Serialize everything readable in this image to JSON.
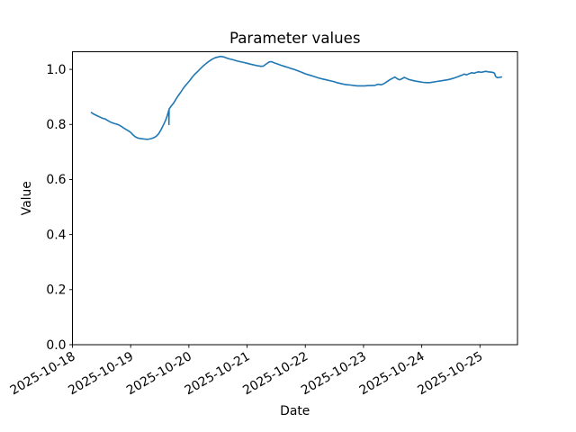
{
  "chart_data": {
    "type": "line",
    "title": "Parameter values",
    "xlabel": "Date",
    "ylabel": "Value",
    "x_tick_labels": [
      "2025-10-18",
      "2025-10-19",
      "2025-10-20",
      "2025-10-21",
      "2025-10-22",
      "2025-10-23",
      "2025-10-24",
      "2025-10-25"
    ],
    "x_tick_positions": [
      0,
      1,
      2,
      3,
      4,
      5,
      6,
      7
    ],
    "x_tick_rotation_deg": 30,
    "y_tick_labels": [
      "0.0",
      "0.2",
      "0.4",
      "0.6",
      "0.8",
      "1.0"
    ],
    "y_ticks": [
      0.0,
      0.2,
      0.4,
      0.6,
      0.8,
      1.0
    ],
    "xlim": [
      0,
      7.645
    ],
    "ylim": [
      0,
      1.064
    ],
    "x_units": "days_since_2025-10-18",
    "grid": false,
    "frame_color": "#000000",
    "background_color": "#ffffff",
    "series": [
      {
        "name": "parameter-values",
        "color": "#1f77b4",
        "linewidth": 1.6,
        "points": [
          [
            0.325,
            0.843
          ],
          [
            0.36,
            0.838
          ],
          [
            0.4,
            0.834
          ],
          [
            0.44,
            0.83
          ],
          [
            0.48,
            0.826
          ],
          [
            0.52,
            0.822
          ],
          [
            0.56,
            0.82
          ],
          [
            0.6,
            0.815
          ],
          [
            0.64,
            0.81
          ],
          [
            0.68,
            0.806
          ],
          [
            0.72,
            0.803
          ],
          [
            0.76,
            0.801
          ],
          [
            0.8,
            0.798
          ],
          [
            0.84,
            0.793
          ],
          [
            0.88,
            0.787
          ],
          [
            0.92,
            0.782
          ],
          [
            0.96,
            0.777
          ],
          [
            1.0,
            0.771
          ],
          [
            1.04,
            0.762
          ],
          [
            1.08,
            0.755
          ],
          [
            1.12,
            0.751
          ],
          [
            1.16,
            0.749
          ],
          [
            1.2,
            0.748
          ],
          [
            1.24,
            0.747
          ],
          [
            1.28,
            0.746
          ],
          [
            1.32,
            0.747
          ],
          [
            1.36,
            0.749
          ],
          [
            1.4,
            0.752
          ],
          [
            1.44,
            0.757
          ],
          [
            1.48,
            0.766
          ],
          [
            1.52,
            0.78
          ],
          [
            1.56,
            0.797
          ],
          [
            1.6,
            0.815
          ],
          [
            1.63,
            0.833
          ],
          [
            1.655,
            0.852
          ],
          [
            1.658,
            0.8
          ],
          [
            1.661,
            0.856
          ],
          [
            1.7,
            0.868
          ],
          [
            1.74,
            0.878
          ],
          [
            1.78,
            0.892
          ],
          [
            1.82,
            0.905
          ],
          [
            1.86,
            0.917
          ],
          [
            1.9,
            0.93
          ],
          [
            1.94,
            0.941
          ],
          [
            1.98,
            0.951
          ],
          [
            2.02,
            0.961
          ],
          [
            2.06,
            0.972
          ],
          [
            2.1,
            0.982
          ],
          [
            2.15,
            0.992
          ],
          [
            2.2,
            1.003
          ],
          [
            2.25,
            1.013
          ],
          [
            2.3,
            1.022
          ],
          [
            2.35,
            1.03
          ],
          [
            2.4,
            1.037
          ],
          [
            2.45,
            1.042
          ],
          [
            2.5,
            1.045
          ],
          [
            2.55,
            1.047
          ],
          [
            2.6,
            1.045
          ],
          [
            2.65,
            1.041
          ],
          [
            2.7,
            1.038
          ],
          [
            2.76,
            1.035
          ],
          [
            2.82,
            1.031
          ],
          [
            2.88,
            1.028
          ],
          [
            2.94,
            1.025
          ],
          [
            3.0,
            1.022
          ],
          [
            3.06,
            1.019
          ],
          [
            3.12,
            1.016
          ],
          [
            3.18,
            1.013
          ],
          [
            3.24,
            1.011
          ],
          [
            3.28,
            1.012
          ],
          [
            3.33,
            1.02
          ],
          [
            3.38,
            1.027
          ],
          [
            3.42,
            1.028
          ],
          [
            3.46,
            1.024
          ],
          [
            3.52,
            1.02
          ],
          [
            3.58,
            1.015
          ],
          [
            3.64,
            1.011
          ],
          [
            3.7,
            1.007
          ],
          [
            3.76,
            1.003
          ],
          [
            3.82,
            0.999
          ],
          [
            3.88,
            0.994
          ],
          [
            3.94,
            0.989
          ],
          [
            4.0,
            0.984
          ],
          [
            4.06,
            0.98
          ],
          [
            4.12,
            0.976
          ],
          [
            4.18,
            0.972
          ],
          [
            4.24,
            0.968
          ],
          [
            4.3,
            0.965
          ],
          [
            4.36,
            0.962
          ],
          [
            4.42,
            0.959
          ],
          [
            4.48,
            0.956
          ],
          [
            4.54,
            0.952
          ],
          [
            4.6,
            0.949
          ],
          [
            4.66,
            0.946
          ],
          [
            4.72,
            0.944
          ],
          [
            4.78,
            0.943
          ],
          [
            4.84,
            0.941
          ],
          [
            4.9,
            0.94
          ],
          [
            4.96,
            0.94
          ],
          [
            5.02,
            0.94
          ],
          [
            5.08,
            0.941
          ],
          [
            5.14,
            0.941
          ],
          [
            5.2,
            0.942
          ],
          [
            5.25,
            0.946
          ],
          [
            5.3,
            0.944
          ],
          [
            5.35,
            0.948
          ],
          [
            5.4,
            0.955
          ],
          [
            5.45,
            0.962
          ],
          [
            5.5,
            0.968
          ],
          [
            5.54,
            0.972
          ],
          [
            5.58,
            0.966
          ],
          [
            5.62,
            0.962
          ],
          [
            5.66,
            0.966
          ],
          [
            5.7,
            0.971
          ],
          [
            5.74,
            0.967
          ],
          [
            5.78,
            0.963
          ],
          [
            5.84,
            0.96
          ],
          [
            5.9,
            0.957
          ],
          [
            5.96,
            0.955
          ],
          [
            6.02,
            0.953
          ],
          [
            6.08,
            0.952
          ],
          [
            6.14,
            0.952
          ],
          [
            6.2,
            0.954
          ],
          [
            6.26,
            0.956
          ],
          [
            6.32,
            0.958
          ],
          [
            6.38,
            0.96
          ],
          [
            6.44,
            0.962
          ],
          [
            6.5,
            0.965
          ],
          [
            6.56,
            0.969
          ],
          [
            6.62,
            0.973
          ],
          [
            6.68,
            0.978
          ],
          [
            6.73,
            0.983
          ],
          [
            6.77,
            0.98
          ],
          [
            6.82,
            0.985
          ],
          [
            6.86,
            0.988
          ],
          [
            6.9,
            0.986
          ],
          [
            6.94,
            0.989
          ],
          [
            6.98,
            0.991
          ],
          [
            7.02,
            0.989
          ],
          [
            7.06,
            0.991
          ],
          [
            7.1,
            0.993
          ],
          [
            7.14,
            0.991
          ],
          [
            7.18,
            0.99
          ],
          [
            7.22,
            0.989
          ],
          [
            7.25,
            0.986
          ],
          [
            7.27,
            0.974
          ],
          [
            7.3,
            0.97
          ],
          [
            7.33,
            0.971
          ],
          [
            7.37,
            0.972
          ]
        ]
      }
    ]
  }
}
